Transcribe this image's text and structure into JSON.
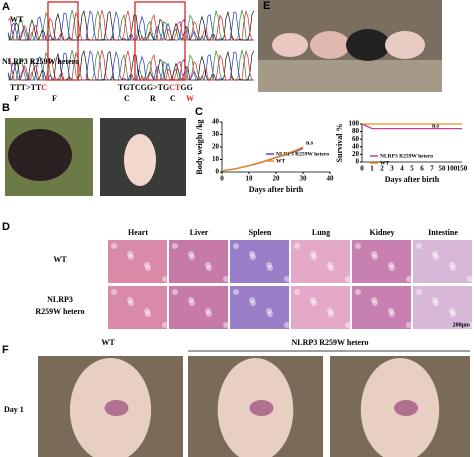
{
  "panels": {
    "a": "A",
    "b": "B",
    "c": "C",
    "d": "D",
    "e": "E",
    "f": "F"
  },
  "sequencing": {
    "wt": "WT",
    "mutant": "NLRP3 R259W hetero",
    "codon1": {
      "before": "TTT>TT",
      "changed": "C",
      "aa1": "F",
      "aa2": "F"
    },
    "codon2": {
      "before": "TGTCGG>TG",
      "changed": "CT",
      "after": "GG",
      "aa1": "C",
      "aa2": "R",
      "aa3": "C",
      "aa4": "W"
    }
  },
  "tissues": {
    "columns": [
      "Heart",
      "Liver",
      "Spleen",
      "Lung",
      "Kidney",
      "Intestine"
    ],
    "wt": "WT",
    "mutant_line1": "NLRP3",
    "mutant_line2": "R259W hetero",
    "scale": "200μm"
  },
  "skin": {
    "wt": "WT",
    "mutant": "NLRP3 R259W hetero",
    "day": "Day 1"
  },
  "chart_data": [
    {
      "type": "line",
      "ylabel": "Body weight /kg",
      "xlabel": "Days after birth",
      "annotation": "n.s",
      "x": [
        0,
        5,
        10,
        15,
        20,
        25,
        28,
        30
      ],
      "series": [
        {
          "name": "NLRP3 R259W hetero",
          "color": "#7b3fa0",
          "values": [
            1,
            2.6,
            5,
            8,
            11.5,
            15,
            17,
            19
          ]
        },
        {
          "name": "WT",
          "color": "#e8901c",
          "values": [
            1,
            2.5,
            5.2,
            8.3,
            11.8,
            15.5,
            18,
            20
          ]
        }
      ],
      "xlim": [
        0,
        40
      ],
      "ylim": [
        0,
        40
      ],
      "xticks": [
        0,
        10,
        20,
        30,
        40
      ],
      "yticks": [
        0,
        10,
        20,
        30,
        40
      ]
    },
    {
      "type": "step",
      "ylabel": "Survival %",
      "xlabel": "Days after birth",
      "annotation": "n.s",
      "categories": [
        "0",
        "1",
        "2",
        "3",
        "4",
        "5",
        "6",
        "7",
        "50",
        "100",
        "150"
      ],
      "series": [
        {
          "name": "NLRP3 R259W hetero",
          "color": "#c0409a",
          "values": [
            100,
            88,
            88,
            88,
            88,
            88,
            88,
            88,
            88,
            88,
            88
          ]
        },
        {
          "name": "WT",
          "color": "#e8901c",
          "values": [
            100,
            100,
            100,
            100,
            100,
            100,
            100,
            100,
            100,
            100,
            100
          ]
        }
      ],
      "ylim": [
        0,
        100
      ],
      "yticks": [
        0,
        20,
        40,
        60,
        80,
        100
      ]
    }
  ]
}
